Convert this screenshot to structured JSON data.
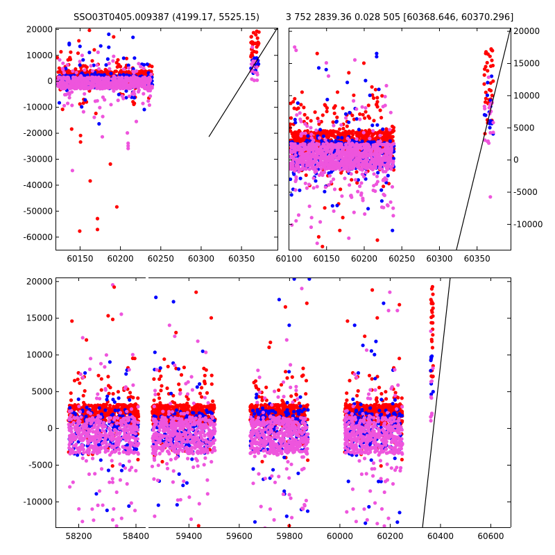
{
  "titles": {
    "left": "SSO03T0405.009387 (4199.17, 5525.15)",
    "right": "3 752 2839.36 0.028 505 [60368.646, 60370.296]"
  },
  "chart_data": [
    {
      "id": "top-left",
      "type": "scatter",
      "title": "SSO03T0405.009387 (4199.17, 5525.15)",
      "xlim": [
        60120,
        60395
      ],
      "ylim": [
        -65000,
        20500
      ],
      "xticks": [
        60150,
        60200,
        60250,
        60300,
        60350
      ],
      "yticks": [
        -60000,
        -50000,
        -40000,
        -30000,
        -20000,
        -10000,
        0,
        10000,
        20000
      ],
      "yaxis_side": "left",
      "grid": false,
      "clusters": [
        {
          "color": "#ff0000",
          "x": [
            60122,
            60240
          ],
          "y_core": [
            -500,
            4000
          ],
          "n": 520
        },
        {
          "color": "#0000ff",
          "x": [
            60122,
            60240
          ],
          "y_core": [
            -2500,
            2500
          ],
          "n": 260
        },
        {
          "color": "#ee55dd",
          "x": [
            60122,
            60240
          ],
          "y_core": [
            -3000,
            1500
          ],
          "n": 520
        },
        {
          "color": "#ff0000",
          "x": [
            60362,
            60372
          ],
          "y_core": [
            4000,
            19500
          ],
          "n": 40
        },
        {
          "color": "#0000ff",
          "x": [
            60362,
            60372
          ],
          "y_core": [
            3000,
            12000
          ],
          "n": 14
        },
        {
          "color": "#ee55dd",
          "x": [
            60362,
            60372
          ],
          "y_core": [
            0,
            8000
          ],
          "n": 16
        }
      ],
      "outliers": [
        {
          "color": "#ff0000",
          "x": 60150,
          "y": -57800
        },
        {
          "color": "#ff0000",
          "x": 60172,
          "y": -57200
        },
        {
          "color": "#ff0000",
          "x": 60172,
          "y": -53000
        },
        {
          "color": "#ff0000",
          "x": 60196,
          "y": -48500
        },
        {
          "color": "#ff0000",
          "x": 60163,
          "y": -38500
        },
        {
          "color": "#ee55dd",
          "x": 60141,
          "y": -34500
        },
        {
          "color": "#ff0000",
          "x": 60188,
          "y": -32000
        },
        {
          "color": "#ee55dd",
          "x": 60210,
          "y": -26000
        },
        {
          "color": "#ee55dd",
          "x": 60210,
          "y": -25000
        },
        {
          "color": "#ee55dd",
          "x": 60210,
          "y": -24000
        },
        {
          "color": "#ff0000",
          "x": 60151,
          "y": -23500
        },
        {
          "color": "#ff0000",
          "x": 60151,
          "y": -21000
        },
        {
          "color": "#ee55dd",
          "x": 60178,
          "y": -21500
        },
        {
          "color": "#ee55dd",
          "x": 60209,
          "y": -20000
        },
        {
          "color": "#ff0000",
          "x": 60140,
          "y": -18500
        },
        {
          "color": "#0000ff",
          "x": 60174,
          "y": -16500
        },
        {
          "color": "#ee55dd",
          "x": 60168,
          "y": -14000
        },
        {
          "color": "#ff0000",
          "x": 60170,
          "y": -12500
        },
        {
          "color": "#0000ff",
          "x": 60230,
          "y": -11000
        },
        {
          "color": "#ff0000",
          "x": 60217,
          "y": -9000
        },
        {
          "color": "#ff0000",
          "x": 60216,
          "y": -8000
        },
        {
          "color": "#ff0000",
          "x": 60162,
          "y": 19500
        },
        {
          "color": "#0000ff",
          "x": 60186,
          "y": 18000
        },
        {
          "color": "#ff0000",
          "x": 60192,
          "y": 17000
        },
        {
          "color": "#0000ff",
          "x": 60216,
          "y": 16800
        },
        {
          "color": "#0000ff",
          "x": 60137,
          "y": 14500
        },
        {
          "color": "#0000ff",
          "x": 60137,
          "y": 14000
        },
        {
          "color": "#0000ff",
          "x": 60186,
          "y": 13000
        },
        {
          "color": "#0000ff",
          "x": 60162,
          "y": 11000
        },
        {
          "color": "#ee55dd",
          "x": 60192,
          "y": 9500
        },
        {
          "color": "#ff0000",
          "x": 60168,
          "y": 12000
        },
        {
          "color": "#0000ff",
          "x": 60176,
          "y": 13500
        }
      ],
      "line": {
        "x": [
          60310,
          60395
        ],
        "y": [
          -21500,
          20500
        ],
        "color": "#000000"
      }
    },
    {
      "id": "top-right",
      "type": "scatter",
      "title": "3 752 2839.36 0.028 505 [60368.646, 60370.296]",
      "xlim": [
        60100,
        60395
      ],
      "ylim": [
        -14000,
        20500
      ],
      "xticks": [
        60100,
        60150,
        60200,
        60250,
        60300,
        60350
      ],
      "yticks": [
        -10000,
        -5000,
        0,
        5000,
        10000,
        15000,
        20000
      ],
      "yaxis_side": "right",
      "grid": false,
      "clusters": [
        {
          "color": "#ff0000",
          "x": [
            60102,
            60240
          ],
          "y_core": [
            1000,
            4500
          ],
          "n": 900
        },
        {
          "color": "#0000ff",
          "x": [
            60102,
            60240
          ],
          "y_core": [
            -1500,
            3000
          ],
          "n": 400
        },
        {
          "color": "#ee55dd",
          "x": [
            60102,
            60240
          ],
          "y_core": [
            -1500,
            2500
          ],
          "n": 900
        },
        {
          "color": "#ff0000",
          "x": [
            60360,
            60372
          ],
          "y_core": [
            5000,
            19000
          ],
          "n": 40
        },
        {
          "color": "#0000ff",
          "x": [
            60360,
            60372
          ],
          "y_core": [
            4000,
            10000
          ],
          "n": 14
        },
        {
          "color": "#ee55dd",
          "x": [
            60360,
            60372
          ],
          "y_core": [
            2000,
            9000
          ],
          "n": 16
        }
      ],
      "outliers": [
        {
          "color": "#ee55dd",
          "x": 60108,
          "y": 17500
        },
        {
          "color": "#ee55dd",
          "x": 60110,
          "y": 17000
        },
        {
          "color": "#ff0000",
          "x": 60138,
          "y": 16500
        },
        {
          "color": "#0000ff",
          "x": 60150,
          "y": 14000
        },
        {
          "color": "#ee55dd",
          "x": 60153,
          "y": 13000
        },
        {
          "color": "#ff0000",
          "x": 60180,
          "y": 13500
        },
        {
          "color": "#0000ff",
          "x": 60178,
          "y": 12000
        },
        {
          "color": "#ee55dd",
          "x": 60188,
          "y": 15500
        },
        {
          "color": "#ff0000",
          "x": 60200,
          "y": 15000
        },
        {
          "color": "#0000ff",
          "x": 60217,
          "y": 16500
        },
        {
          "color": "#0000ff",
          "x": 60217,
          "y": 16000
        },
        {
          "color": "#ee55dd",
          "x": 60230,
          "y": 11500
        },
        {
          "color": "#ff0000",
          "x": 60165,
          "y": 10500
        },
        {
          "color": "#0000ff",
          "x": 60208,
          "y": 10000
        },
        {
          "color": "#ff0000",
          "x": 60218,
          "y": 9000
        },
        {
          "color": "#ff0000",
          "x": 60172,
          "y": 8000
        },
        {
          "color": "#ff0000",
          "x": 60148,
          "y": -7500
        },
        {
          "color": "#ee55dd",
          "x": 60160,
          "y": -8000
        },
        {
          "color": "#ff0000",
          "x": 60172,
          "y": -9000
        },
        {
          "color": "#ee55dd",
          "x": 60110,
          "y": -9500
        },
        {
          "color": "#ee55dd",
          "x": 60130,
          "y": -10500
        },
        {
          "color": "#ff0000",
          "x": 60168,
          "y": -11000
        },
        {
          "color": "#0000ff",
          "x": 60238,
          "y": -11000
        },
        {
          "color": "#ff0000",
          "x": 60140,
          "y": -12000
        },
        {
          "color": "#ff0000",
          "x": 60218,
          "y": -12500
        },
        {
          "color": "#ff0000",
          "x": 60145,
          "y": -13500
        },
        {
          "color": "#ee55dd",
          "x": 60180,
          "y": -12200
        },
        {
          "color": "#ee55dd",
          "x": 60138,
          "y": -13000
        }
      ],
      "line": {
        "x": [
          60323,
          60395
        ],
        "y": [
          -14000,
          20500
        ],
        "color": "#000000"
      }
    },
    {
      "id": "bottom",
      "type": "scatter",
      "title": "",
      "xlim": [
        58120,
        60680
      ],
      "ylim": [
        -13500,
        20500
      ],
      "xticks": [
        58200,
        58400,
        59400,
        59600,
        59800,
        60000,
        60200,
        60400,
        60600
      ],
      "yticks": [
        -10000,
        -5000,
        0,
        5000,
        10000,
        15000,
        20000
      ],
      "yaxis_side": "left",
      "grid": false,
      "x_segments": [
        {
          "x": [
            58120,
            58440
          ],
          "label": "left"
        },
        {
          "x": [
            59235,
            60680
          ],
          "label": "right"
        }
      ],
      "clusters": [
        {
          "color": "#ff0000",
          "x": [
            58165,
            58410
          ],
          "y_core": [
            500,
            3200
          ],
          "n": 500
        },
        {
          "color": "#0000ff",
          "x": [
            58165,
            58410
          ],
          "y_core": [
            -3000,
            2500
          ],
          "n": 180
        },
        {
          "color": "#ee55dd",
          "x": [
            58165,
            58410
          ],
          "y_core": [
            -3500,
            1500
          ],
          "n": 450
        },
        {
          "color": "#ff0000",
          "x": [
            59255,
            59505
          ],
          "y_core": [
            500,
            3200
          ],
          "n": 500
        },
        {
          "color": "#0000ff",
          "x": [
            59255,
            59505
          ],
          "y_core": [
            -3000,
            2500
          ],
          "n": 180
        },
        {
          "color": "#ee55dd",
          "x": [
            59255,
            59505
          ],
          "y_core": [
            -3500,
            1500
          ],
          "n": 450
        },
        {
          "color": "#ff0000",
          "x": [
            59645,
            59875
          ],
          "y_core": [
            500,
            3200
          ],
          "n": 500
        },
        {
          "color": "#0000ff",
          "x": [
            59645,
            59875
          ],
          "y_core": [
            -3000,
            2500
          ],
          "n": 180
        },
        {
          "color": "#ee55dd",
          "x": [
            59645,
            59875
          ],
          "y_core": [
            -3500,
            1500
          ],
          "n": 450
        },
        {
          "color": "#ff0000",
          "x": [
            60020,
            60250
          ],
          "y_core": [
            500,
            3200
          ],
          "n": 500
        },
        {
          "color": "#0000ff",
          "x": [
            60020,
            60250
          ],
          "y_core": [
            -3000,
            2500
          ],
          "n": 180
        },
        {
          "color": "#ee55dd",
          "x": [
            60020,
            60250
          ],
          "y_core": [
            -3500,
            1500
          ],
          "n": 450
        },
        {
          "color": "#ff0000",
          "x": [
            60362,
            60372
          ],
          "y_core": [
            5000,
            19500
          ],
          "n": 30
        },
        {
          "color": "#0000ff",
          "x": [
            60362,
            60372
          ],
          "y_core": [
            4000,
            10000
          ],
          "n": 8
        },
        {
          "color": "#ee55dd",
          "x": [
            60362,
            60372
          ],
          "y_core": [
            1000,
            9000
          ],
          "n": 10
        }
      ],
      "outliers": [
        {
          "color": "#ee55dd",
          "x": 58320,
          "y": 19500
        },
        {
          "color": "#ff0000",
          "x": 58325,
          "y": 19200
        },
        {
          "color": "#ff0000",
          "x": 58304,
          "y": 15300
        },
        {
          "color": "#ff0000",
          "x": 58320,
          "y": 14800
        },
        {
          "color": "#ee55dd",
          "x": 58350,
          "y": 15500
        },
        {
          "color": "#ee55dd",
          "x": 58215,
          "y": 12300
        },
        {
          "color": "#ff0000",
          "x": 58228,
          "y": 12000
        },
        {
          "color": "#ee55dd",
          "x": 58390,
          "y": 10000
        },
        {
          "color": "#ff0000",
          "x": 58390,
          "y": 9500
        },
        {
          "color": "#0000ff",
          "x": 58310,
          "y": 9000
        },
        {
          "color": "#ee55dd",
          "x": 58240,
          "y": 8000
        },
        {
          "color": "#ee55dd",
          "x": 58170,
          "y": -8000
        },
        {
          "color": "#ee55dd",
          "x": 58285,
          "y": -10500
        },
        {
          "color": "#0000ff",
          "x": 58300,
          "y": -11200
        },
        {
          "color": "#ee55dd",
          "x": 58385,
          "y": -10200
        },
        {
          "color": "#ee55dd",
          "x": 58320,
          "y": -12500
        },
        {
          "color": "#0000ff",
          "x": 59270,
          "y": 17800
        },
        {
          "color": "#0000ff",
          "x": 59340,
          "y": 17200
        },
        {
          "color": "#ff0000",
          "x": 59430,
          "y": 18500
        },
        {
          "color": "#ff0000",
          "x": 59490,
          "y": 15000
        },
        {
          "color": "#ff0000",
          "x": 59350,
          "y": 13000
        },
        {
          "color": "#ee55dd",
          "x": 59345,
          "y": 12500
        },
        {
          "color": "#0000ff",
          "x": 59280,
          "y": -10500
        },
        {
          "color": "#ee55dd",
          "x": 59265,
          "y": -12000
        },
        {
          "color": "#ff0000",
          "x": 59440,
          "y": -13300
        },
        {
          "color": "#ee55dd",
          "x": 59410,
          "y": -12400
        },
        {
          "color": "#0000ff",
          "x": 59820,
          "y": 20300
        },
        {
          "color": "#0000ff",
          "x": 59880,
          "y": 20300
        },
        {
          "color": "#ee55dd",
          "x": 59850,
          "y": 19000
        },
        {
          "color": "#0000ff",
          "x": 59760,
          "y": 17500
        },
        {
          "color": "#ff0000",
          "x": 59785,
          "y": 16500
        },
        {
          "color": "#ff0000",
          "x": 59870,
          "y": 17000
        },
        {
          "color": "#0000ff",
          "x": 59800,
          "y": 14000
        },
        {
          "color": "#ee55dd",
          "x": 59790,
          "y": 12000
        },
        {
          "color": "#ff0000",
          "x": 59720,
          "y": 11000
        },
        {
          "color": "#ee55dd",
          "x": 59740,
          "y": -12500
        },
        {
          "color": "#0000ff",
          "x": 59790,
          "y": -12000
        },
        {
          "color": "#ee55dd",
          "x": 59855,
          "y": -11000
        },
        {
          "color": "#ff0000",
          "x": 59800,
          "y": -13300
        },
        {
          "color": "#ff0000",
          "x": 60130,
          "y": 18800
        },
        {
          "color": "#ee55dd",
          "x": 60200,
          "y": 18500
        },
        {
          "color": "#0000ff",
          "x": 60175,
          "y": 17000
        },
        {
          "color": "#ee55dd",
          "x": 60195,
          "y": 16000
        },
        {
          "color": "#ff0000",
          "x": 60150,
          "y": 15000
        },
        {
          "color": "#0000ff",
          "x": 60060,
          "y": 14000
        },
        {
          "color": "#ff0000",
          "x": 60238,
          "y": 16800
        },
        {
          "color": "#ee55dd",
          "x": 60230,
          "y": 16000
        },
        {
          "color": "#ff0000",
          "x": 60100,
          "y": 12500
        },
        {
          "color": "#ee55dd",
          "x": 60110,
          "y": -12500
        },
        {
          "color": "#0000ff",
          "x": 60230,
          "y": -12800
        },
        {
          "color": "#ee55dd",
          "x": 60150,
          "y": -13000
        }
      ],
      "line": {
        "x": [
          60330,
          60440
        ],
        "y": [
          -13500,
          20500
        ],
        "color": "#000000"
      }
    }
  ]
}
